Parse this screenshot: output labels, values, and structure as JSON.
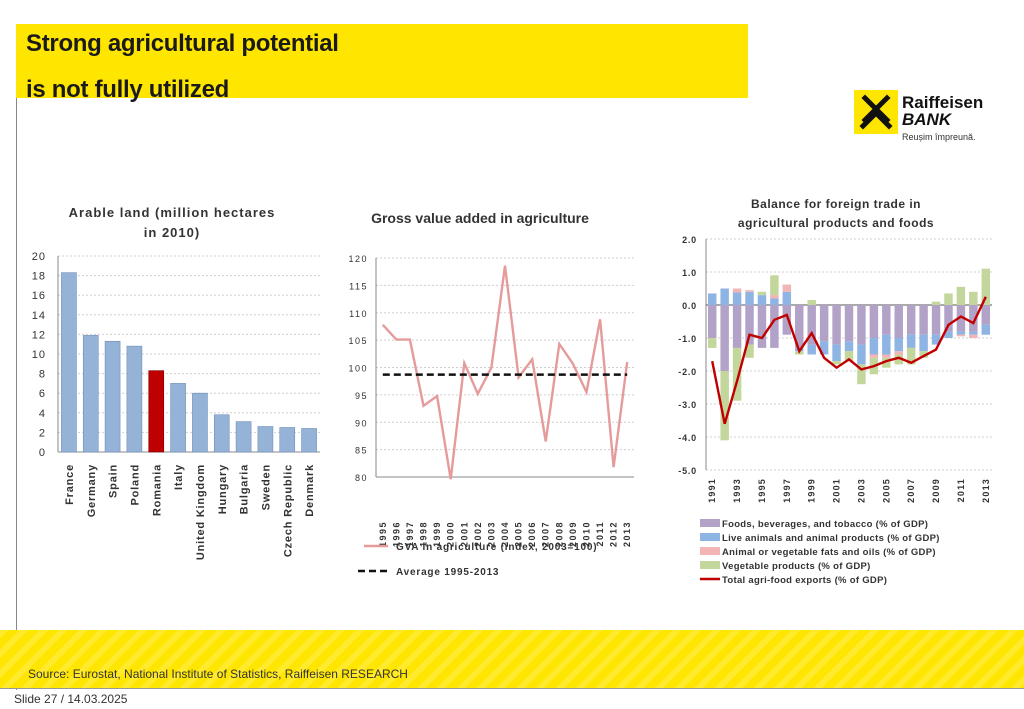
{
  "slide": {
    "title_line1": "Strong agricultural potential",
    "title_line2": "is  not fully utilized",
    "source": "Source: Eurostat, National Institute of Statistics, Raiffeisen RESEARCH",
    "footer": "Slide 27 / 14.03.2025",
    "logo_name": "Raiffeisen",
    "logo_sub": "BANK",
    "logo_tagline": "Reușim împreună.",
    "colors": {
      "title_band": "#ffe600",
      "accent_red": "#c00000",
      "bar_blue": "#95b3d7"
    }
  },
  "chart_data": [
    {
      "type": "bar",
      "title": "Arable land (million hectares in 2010)",
      "categories": [
        "France",
        "Germany",
        "Spain",
        "Poland",
        "Romania",
        "Italy",
        "United Kingdom",
        "Hungary",
        "Bulgaria",
        "Sweden",
        "Czech Republic",
        "Denmark"
      ],
      "values": [
        18.3,
        11.9,
        11.3,
        10.8,
        8.3,
        7.0,
        6.0,
        3.8,
        3.1,
        2.6,
        2.5,
        2.4
      ],
      "highlight": "Romania",
      "ylim": [
        0,
        20
      ],
      "yticks": [
        "0",
        "2",
        "4",
        "6",
        "8",
        "10",
        "12",
        "14",
        "16",
        "18",
        "20"
      ],
      "grid": true
    },
    {
      "type": "line",
      "title": "Gross value added in agriculture",
      "x": [
        "1995",
        "1996",
        "1997",
        "1998",
        "1999",
        "2000",
        "2001",
        "2002",
        "2003",
        "2004",
        "2005",
        "2006",
        "2007",
        "2008",
        "2009",
        "2010",
        "2011",
        "2012",
        "2013"
      ],
      "series": [
        {
          "name": "GVA in agriculture (index, 2003=100)",
          "values": [
            107.8,
            105.1,
            105.1,
            93.0,
            94.8,
            79.6,
            100.8,
            95.2,
            100.0,
            118.6,
            98.2,
            101.5,
            86.5,
            104.3,
            100.7,
            95.5,
            108.8,
            81.8,
            101.0
          ]
        },
        {
          "name": "Average 1995-2013",
          "values": [
            98.7,
            98.7,
            98.7,
            98.7,
            98.7,
            98.7,
            98.7,
            98.7,
            98.7,
            98.7,
            98.7,
            98.7,
            98.7,
            98.7,
            98.7,
            98.7,
            98.7,
            98.7,
            98.7
          ],
          "style": "dashed"
        }
      ],
      "ylim": [
        80,
        120
      ],
      "yticks": [
        "80",
        "85",
        "90",
        "95",
        "100",
        "105",
        "110",
        "115",
        "120"
      ],
      "legend_position": "bottom",
      "grid": true
    },
    {
      "type": "bar",
      "title": "Balance for foreign trade in agricultural products and foods",
      "x": [
        "1991",
        "1992",
        "1993",
        "1994",
        "1995",
        "1996",
        "1997",
        "1998",
        "1999",
        "2000",
        "2001",
        "2002",
        "2003",
        "2004",
        "2005",
        "2006",
        "2007",
        "2008",
        "2009",
        "2010",
        "2011",
        "2012",
        "2013"
      ],
      "xtick_labels": [
        "1991",
        "1993",
        "1995",
        "1997",
        "1999",
        "2001",
        "2003",
        "2005",
        "2007",
        "2009",
        "2011",
        "2013"
      ],
      "stacked": true,
      "series": [
        {
          "name": "Foods, beverages, and tobacco (% of GDP)",
          "color": "#b3a2c7",
          "values": [
            -1.0,
            -2.0,
            -1.3,
            -1.2,
            -1.3,
            -1.3,
            -0.9,
            -1.3,
            -1.2,
            -1.1,
            -1.2,
            -1.1,
            -1.2,
            -1.0,
            -0.9,
            -1.0,
            -0.9,
            -0.9,
            -0.9,
            -0.8,
            -0.8,
            -0.8,
            -0.6
          ]
        },
        {
          "name": "Live animals and animal products (% of GDP)",
          "color": "#8eb4e3",
          "values": [
            0.35,
            0.5,
            0.38,
            0.4,
            0.3,
            0.2,
            0.4,
            -0.1,
            -0.3,
            -0.4,
            -0.5,
            -0.3,
            -0.6,
            -0.5,
            -0.6,
            -0.4,
            -0.4,
            -0.5,
            -0.3,
            -0.2,
            -0.1,
            -0.1,
            -0.3
          ]
        },
        {
          "name": "Animal or vegetable fats and oils (% of GDP)",
          "color": "#f2b4b4",
          "values": [
            0.0,
            0.0,
            0.12,
            0.05,
            0.0,
            0.1,
            0.22,
            0.0,
            0.0,
            0.0,
            0.0,
            0.0,
            0.0,
            -0.1,
            -0.1,
            -0.1,
            0.0,
            0.0,
            0.0,
            0.0,
            -0.05,
            -0.1,
            0.0
          ]
        },
        {
          "name": "Vegetable products (% of GDP)",
          "color": "#c3d69b",
          "values": [
            -0.3,
            -2.1,
            -1.6,
            -0.4,
            0.1,
            0.6,
            0.0,
            -0.1,
            0.15,
            0.0,
            -0.1,
            -0.3,
            -0.6,
            -0.5,
            -0.3,
            -0.3,
            -0.5,
            -0.2,
            0.1,
            0.35,
            0.55,
            0.4,
            1.1
          ]
        },
        {
          "name": "Total agri-food exports (% of GDP)",
          "color": "#c00000",
          "kind": "line",
          "values": [
            -1.7,
            -3.6,
            -2.3,
            -0.9,
            -1.0,
            -0.45,
            -0.3,
            -1.4,
            -0.85,
            -1.6,
            -1.9,
            -1.65,
            -1.95,
            -1.85,
            -1.7,
            -1.6,
            -1.75,
            -1.55,
            -1.35,
            -0.6,
            -0.35,
            -0.55,
            0.25
          ]
        }
      ],
      "ylim": [
        -5.0,
        2.0
      ],
      "yticks": [
        "-5.0",
        "-4.0",
        "-3.0",
        "-2.0",
        "-1.0",
        "0.0",
        "1.0",
        "2.0"
      ],
      "legend_position": "bottom",
      "grid": true
    }
  ]
}
